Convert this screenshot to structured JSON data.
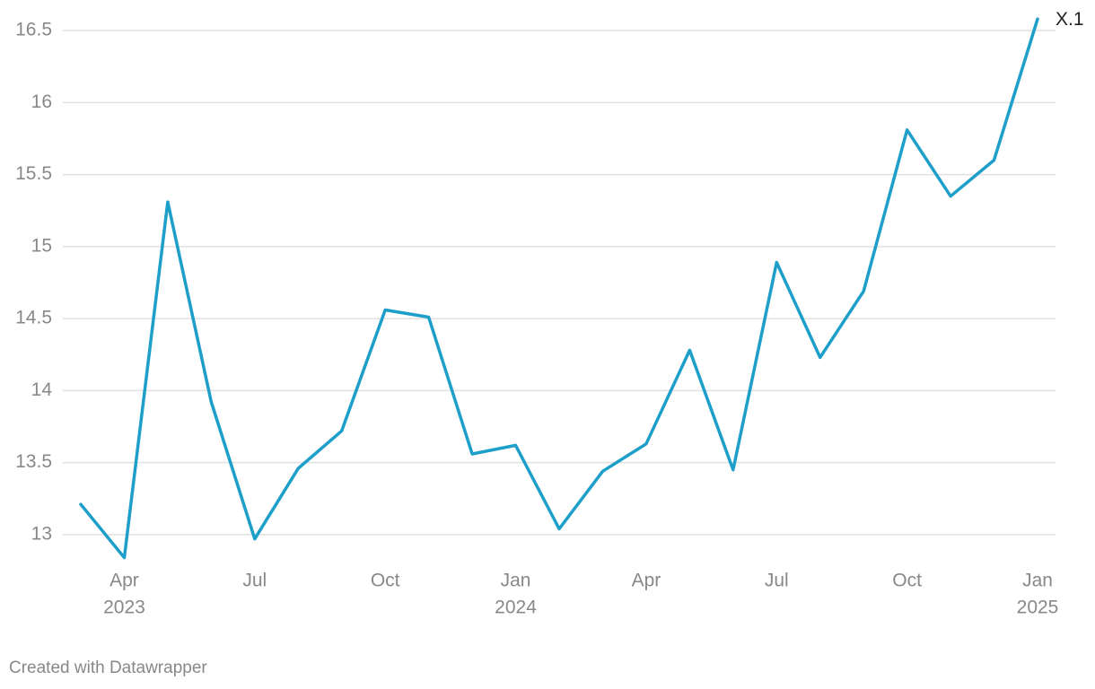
{
  "chart_data": {
    "type": "line",
    "x": [
      "2023-03",
      "2023-04",
      "2023-05",
      "2023-06",
      "2023-07",
      "2023-08",
      "2023-09",
      "2023-10",
      "2023-11",
      "2023-12",
      "2024-01",
      "2024-02",
      "2024-03",
      "2024-04",
      "2024-05",
      "2024-06",
      "2024-07",
      "2024-08",
      "2024-09",
      "2024-10",
      "2024-11",
      "2024-12",
      "2025-01"
    ],
    "series": [
      {
        "name": "X.1",
        "color": "#1d9fc9",
        "values": [
          13.21,
          12.84,
          15.31,
          13.92,
          12.97,
          13.46,
          13.72,
          14.56,
          14.51,
          13.56,
          13.62,
          13.04,
          13.44,
          13.63,
          14.28,
          13.45,
          14.89,
          14.23,
          14.69,
          15.81,
          15.35,
          15.6,
          16.58
        ]
      }
    ],
    "xlim": [
      "2023-03",
      "2025-01"
    ],
    "xticks": [
      {
        "value": "2023-04",
        "label": "Apr",
        "year": "2023"
      },
      {
        "value": "2023-07",
        "label": "Jul"
      },
      {
        "value": "2023-10",
        "label": "Oct"
      },
      {
        "value": "2024-01",
        "label": "Jan",
        "year": "2024"
      },
      {
        "value": "2024-04",
        "label": "Apr"
      },
      {
        "value": "2024-07",
        "label": "Jul"
      },
      {
        "value": "2024-10",
        "label": "Oct"
      },
      {
        "value": "2025-01",
        "label": "Jan",
        "year": "2025"
      }
    ],
    "ylim": [
      12.8,
      16.6
    ],
    "yticks": [
      13,
      13.5,
      14,
      14.5,
      15,
      15.5,
      16,
      16.5
    ],
    "grid": true,
    "footer": "Created with Datawrapper"
  }
}
